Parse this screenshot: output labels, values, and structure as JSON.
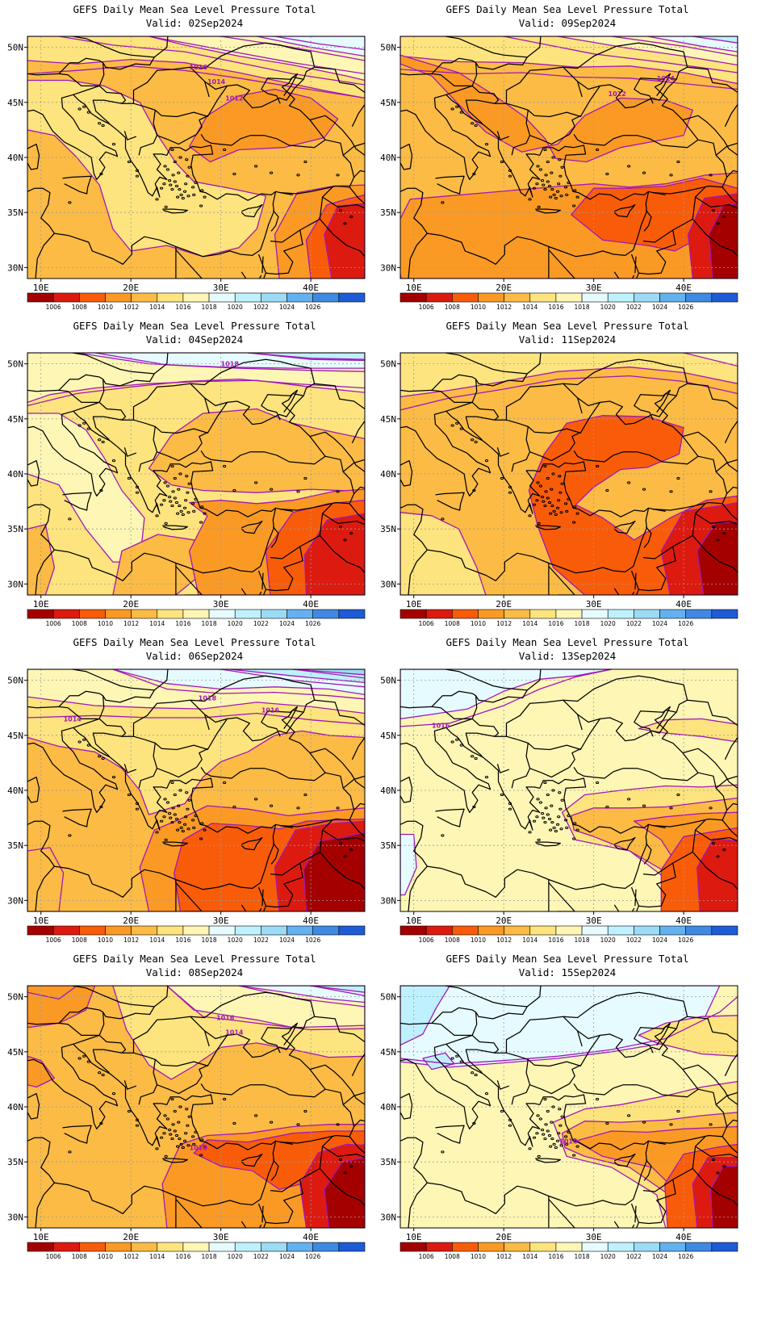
{
  "map_meta": {
    "lon_range": [
      8.5,
      46
    ],
    "lat_range": [
      29,
      51
    ],
    "lon_ticks": [
      10,
      20,
      30,
      40
    ],
    "lat_ticks": [
      30,
      35,
      40,
      45,
      50
    ],
    "lon_tick_labels": [
      "10E",
      "20E",
      "30E",
      "40E"
    ],
    "lat_tick_labels": [
      "30N",
      "35N",
      "40N",
      "45N",
      "50N"
    ],
    "gridlines": "dotted"
  },
  "colorbar": {
    "labels": [
      "1006",
      "1008",
      "1010",
      "1012",
      "1014",
      "1016",
      "1018",
      "1020",
      "1022",
      "1024",
      "1026"
    ],
    "colors": [
      "#a50000",
      "#dd1a0f",
      "#f95c09",
      "#fa9a24",
      "#fbbb45",
      "#fde47e",
      "#fef6b5",
      "#e6fbff",
      "#bef1fd",
      "#9bdbf5",
      "#64b1ef",
      "#3f89e2",
      "#1e5bd6"
    ]
  },
  "panels": [
    {
      "title": "GEFS Daily Mean Sea Level Pressure Total",
      "valid": "Valid: 02Sep2024",
      "labels": [
        "1016",
        "1014",
        "1012"
      ]
    },
    {
      "title": "GEFS Daily Mean Sea Level Pressure Total",
      "valid": "Valid: 09Sep2024",
      "labels": [
        "1014",
        "1012"
      ]
    },
    {
      "title": "GEFS Daily Mean Sea Level Pressure Total",
      "valid": "Valid: 04Sep2024",
      "labels": [
        "1018"
      ]
    },
    {
      "title": "GEFS Daily Mean Sea Level Pressure Total",
      "valid": "Valid: 11Sep2024",
      "labels": []
    },
    {
      "title": "GEFS Daily Mean Sea Level Pressure Total",
      "valid": "Valid: 06Sep2024",
      "labels": [
        "1018",
        "1016",
        "1014"
      ]
    },
    {
      "title": "GEFS Daily Mean Sea Level Pressure Total",
      "valid": "Valid: 13Sep2024",
      "labels": [
        "1016"
      ]
    },
    {
      "title": "GEFS Daily Mean Sea Level Pressure Total",
      "valid": "Valid: 08Sep2024",
      "labels": [
        "1016",
        "1014",
        "1010"
      ]
    },
    {
      "title": "GEFS Daily Mean Sea Level Pressure Total",
      "valid": "Valid: 15Sep2024",
      "labels": [
        "1010"
      ]
    }
  ]
}
